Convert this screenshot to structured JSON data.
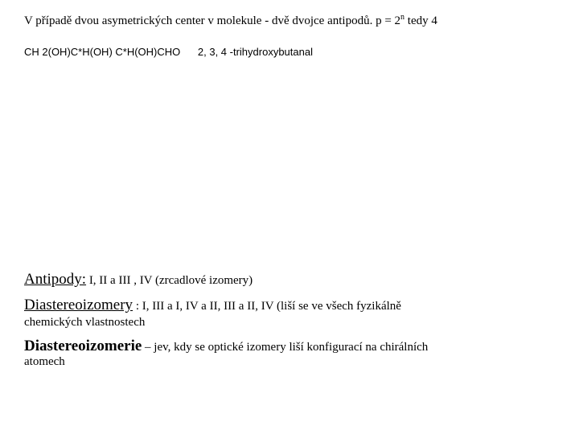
{
  "line1_part1": "V případě dvou asymetrických center v molekule - dvě dvojce antipodů. p = 2",
  "line1_sup": "n",
  "line1_part2": " tedy 4",
  "line2_formula": "CH 2(OH)C*H(OH) C*H(OH)CHO",
  "line2_name": "2, 3, 4 -trihydroxybutanal",
  "antipody_title": "Antipody:",
  "antipody_rest": " I, II a III , IV (zrcadlové izomery)",
  "diastereo_title": "Diastereoizomery",
  "diastereo_rest": " : I, III a I, IV a II, III a II, IV (liší se ve všech fyzikálně",
  "diastereo_cont": "chemických vlastnostech",
  "diastereoizomerie_title": "Diastereoizomerie",
  "diastereoizomerie_rest": " – jev, kdy se optické izomery liší konfigurací na chirálních",
  "diastereoizomerie_cont": "atomech"
}
